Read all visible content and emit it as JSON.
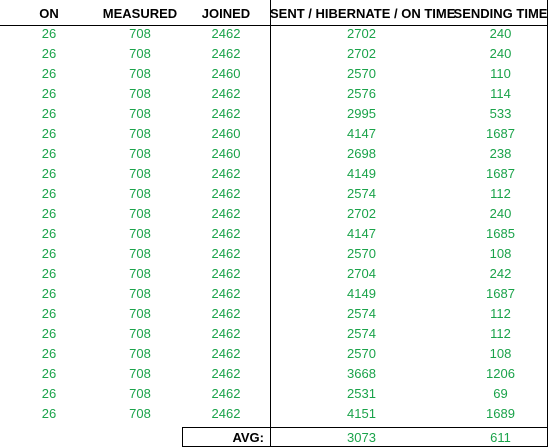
{
  "table": {
    "headers": [
      "ON",
      "MEASURED",
      "JOINED",
      "SENT / HIBERNATE / ON TIME",
      "SENDING TIME"
    ],
    "rows": [
      [
        "26",
        "708",
        "2462",
        "2702",
        "240"
      ],
      [
        "26",
        "708",
        "2462",
        "2702",
        "240"
      ],
      [
        "26",
        "708",
        "2460",
        "2570",
        "110"
      ],
      [
        "26",
        "708",
        "2462",
        "2576",
        "114"
      ],
      [
        "26",
        "708",
        "2462",
        "2995",
        "533"
      ],
      [
        "26",
        "708",
        "2460",
        "4147",
        "1687"
      ],
      [
        "26",
        "708",
        "2460",
        "2698",
        "238"
      ],
      [
        "26",
        "708",
        "2462",
        "4149",
        "1687"
      ],
      [
        "26",
        "708",
        "2462",
        "2574",
        "112"
      ],
      [
        "26",
        "708",
        "2462",
        "2702",
        "240"
      ],
      [
        "26",
        "708",
        "2462",
        "4147",
        "1685"
      ],
      [
        "26",
        "708",
        "2462",
        "2570",
        "108"
      ],
      [
        "26",
        "708",
        "2462",
        "2704",
        "242"
      ],
      [
        "26",
        "708",
        "2462",
        "4149",
        "1687"
      ],
      [
        "26",
        "708",
        "2462",
        "2574",
        "112"
      ],
      [
        "26",
        "708",
        "2462",
        "2574",
        "112"
      ],
      [
        "26",
        "708",
        "2462",
        "2570",
        "108"
      ],
      [
        "26",
        "708",
        "2462",
        "3668",
        "1206"
      ],
      [
        "26",
        "708",
        "2462",
        "2531",
        "69"
      ],
      [
        "26",
        "708",
        "2462",
        "4151",
        "1689"
      ]
    ],
    "avg": {
      "label": "AVG:",
      "sent": "3073",
      "sending": "611"
    }
  },
  "colors": {
    "value_text": "#1aa34a",
    "header_text": "#000000",
    "border": "#000000"
  }
}
